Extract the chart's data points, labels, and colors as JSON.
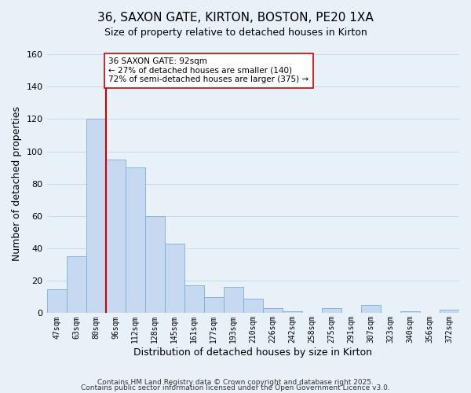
{
  "title": "36, SAXON GATE, KIRTON, BOSTON, PE20 1XA",
  "subtitle": "Size of property relative to detached houses in Kirton",
  "xlabel": "Distribution of detached houses by size in Kirton",
  "ylabel": "Number of detached properties",
  "categories": [
    "47sqm",
    "63sqm",
    "80sqm",
    "96sqm",
    "112sqm",
    "128sqm",
    "145sqm",
    "161sqm",
    "177sqm",
    "193sqm",
    "210sqm",
    "226sqm",
    "242sqm",
    "258sqm",
    "275sqm",
    "291sqm",
    "307sqm",
    "323sqm",
    "340sqm",
    "356sqm",
    "372sqm"
  ],
  "values": [
    15,
    35,
    120,
    95,
    90,
    60,
    43,
    17,
    10,
    16,
    9,
    3,
    1,
    0,
    3,
    0,
    5,
    0,
    1,
    0,
    2
  ],
  "bar_color": "#c6d9f1",
  "bar_edge_color": "#7bafd4",
  "vline_x_index": 3,
  "vline_color": "#cc0000",
  "ylim": [
    0,
    160
  ],
  "yticks": [
    0,
    20,
    40,
    60,
    80,
    100,
    120,
    140,
    160
  ],
  "annotation_line1": "36 SAXON GATE: 92sqm",
  "annotation_line2": "← 27% of detached houses are smaller (140)",
  "annotation_line3": "72% of semi-detached houses are larger (375) →",
  "annotation_box_color": "#ffffff",
  "annotation_box_edge": "#cc0000",
  "grid_color": "#c8d8e8",
  "background_color": "#e8f0f8",
  "footer1": "Contains HM Land Registry data © Crown copyright and database right 2025.",
  "footer2": "Contains public sector information licensed under the Open Government Licence v3.0."
}
